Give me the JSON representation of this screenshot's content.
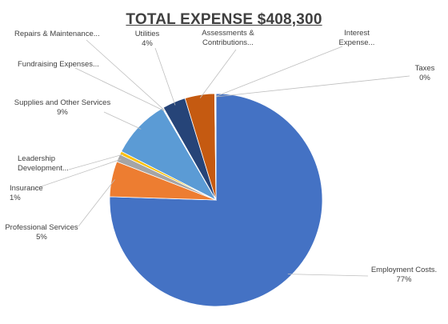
{
  "chart_data": {
    "type": "pie",
    "title": "TOTAL EXPENSE $408,300",
    "slices": [
      {
        "label_lines": [
          "Employment Costs."
        ],
        "value_label": "77%",
        "value": 77,
        "color": "#4472C4"
      },
      {
        "label_lines": [
          "Professional Services"
        ],
        "value_label": "5%",
        "value": 5.5,
        "color": "#ED7D31"
      },
      {
        "label_lines": [
          "Insurance"
        ],
        "value_label": "1%",
        "value": 1.2,
        "color": "#A5A5A5"
      },
      {
        "label_lines": [
          "Leadership",
          "Development..."
        ],
        "value_label": "",
        "value": 0.5,
        "color": "#FFC000"
      },
      {
        "label_lines": [
          "Supplies and Other Services"
        ],
        "value_label": "9%",
        "value": 9.2,
        "color": "#5B9BD5"
      },
      {
        "label_lines": [
          "Fundraising Expenses..."
        ],
        "value_label": "",
        "value": 0.1,
        "color": "#70AD47"
      },
      {
        "label_lines": [
          "Repairs & Maintenance..."
        ],
        "value_label": "",
        "value": 0.1,
        "color": "#264478"
      },
      {
        "label_lines": [
          "Utilities"
        ],
        "value_label": "4%",
        "value": 3.6,
        "color": "#264478"
      },
      {
        "label_lines": [
          "Assessments &",
          "Contributions..."
        ],
        "value_label": "",
        "value": 4.6,
        "color": "#C55A11"
      },
      {
        "label_lines": [
          "Interest",
          "Expense..."
        ],
        "value_label": "",
        "value": 0.1,
        "color": "#7F7F7F"
      },
      {
        "label_lines": [
          "Taxes"
        ],
        "value_label": "0%",
        "value": 0.1,
        "color": "#997300"
      }
    ]
  }
}
